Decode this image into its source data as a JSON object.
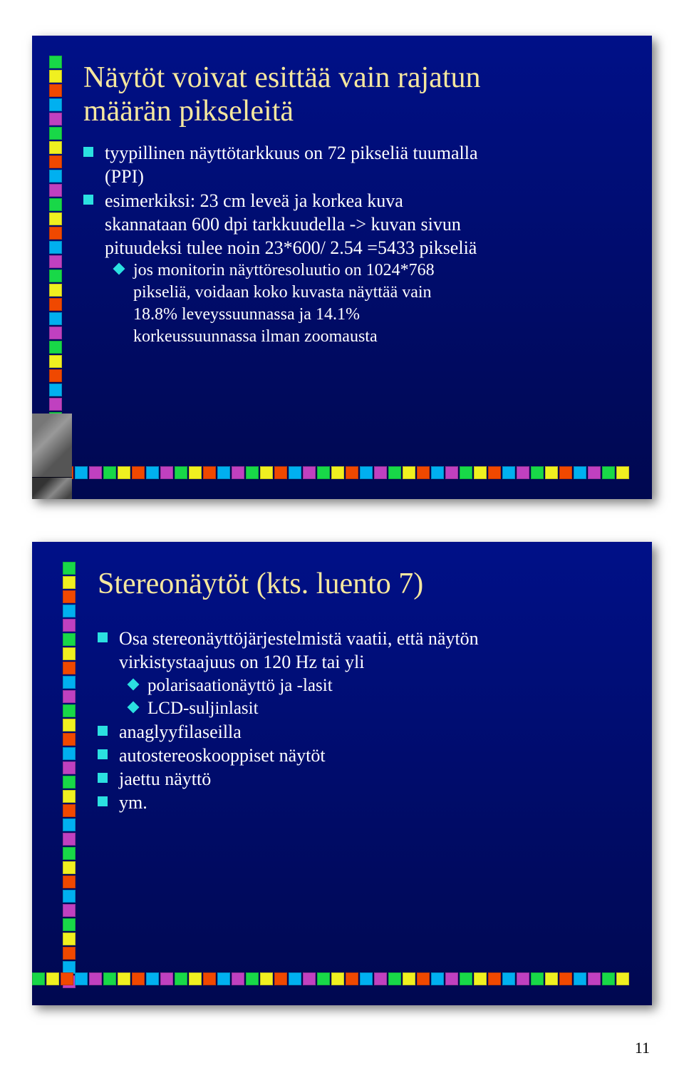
{
  "ribbon_colors": [
    "#18d848",
    "#f0f020",
    "#f04800",
    "#00b0f0",
    "#c040c0",
    "#18d848",
    "#f0f020",
    "#f04800",
    "#00b0f0",
    "#c040c0",
    "#18d848",
    "#f0f020",
    "#f04800",
    "#00b0f0",
    "#c040c0",
    "#18d848",
    "#f0f020",
    "#f04800",
    "#00b0f0",
    "#c040c0",
    "#18d848",
    "#f0f020",
    "#f04800",
    "#00b0f0",
    "#c040c0",
    "#18d848",
    "#f0f020",
    "#f04800",
    "#00b0f0",
    "#c040c0",
    "#18d848",
    "#f0f020",
    "#f04800",
    "#00b0f0",
    "#c040c0",
    "#18d848",
    "#f0f020",
    "#f04800",
    "#00b0f0",
    "#c040c0",
    "#18d848",
    "#f0f020",
    "#f04800",
    "#00b0f0",
    "#c040c0"
  ],
  "slide1": {
    "title_l1": "Näytöt voivat esittää vain rajatun",
    "title_l2": "määrän pikseleitä",
    "b1_l1": "tyypillinen näyttötarkkuus on 72 pikseliä tuumalla",
    "b1_l2": "(PPI)",
    "b2_l1": "esimerkiksi: 23 cm leveä ja korkea kuva",
    "b2_l2": "skannataan 600 dpi tarkkuudella -> kuvan sivun",
    "b2_l3": "pituudeksi tulee noin 23*600/ 2.54 =5433 pikseliä",
    "b2s1_l1": "jos monitorin näyttöresoluutio on 1024*768",
    "b2s1_l2": "pikseliä, voidaan koko kuvasta näyttää vain",
    "b2s1_l3": "18.8% leveyssuunnassa ja 14.1%",
    "b2s1_l4": "korkeussuunnassa ilman zoomausta"
  },
  "slide2": {
    "title": "Stereonäytöt (kts. luento 7)",
    "b1_l1": "Osa stereonäyttöjärjestelmistä vaatii, että näytön",
    "b1_l2": "virkistystaajuus on 120 Hz tai yli",
    "b1s1": "polarisaationäyttö ja -lasit",
    "b1s2": "LCD-suljinlasit",
    "b2": "anaglyyfilaseilla",
    "b3": "autostereoskooppiset näytöt",
    "b4": "jaettu näyttö",
    "b5": "ym."
  },
  "page_number": "11"
}
